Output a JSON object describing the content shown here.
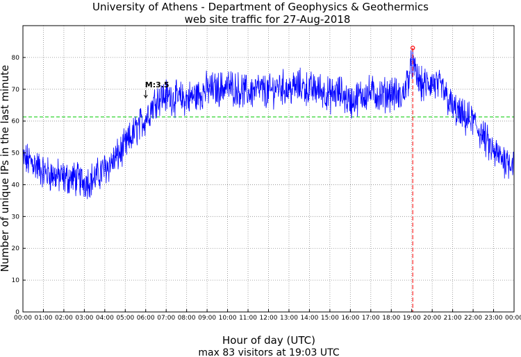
{
  "chart_data": {
    "type": "line",
    "title_line1": "University of Athens - Department of Geophysics & Geothermics",
    "title_line2": "web site traffic for 27-Aug-2018",
    "ylabel": "Number of unique IPs in the last minute",
    "xlabel": "Hour of day (UTC)",
    "subtitle": "max 83 visitors at 19:03 UTC",
    "xlim": [
      0,
      24
    ],
    "ylim": [
      0,
      90
    ],
    "x_tick_labels": [
      "00:00",
      "01:00",
      "02:00",
      "03:00",
      "04:00",
      "05:00",
      "06:00",
      "07:00",
      "08:00",
      "09:00",
      "10:00",
      "11:00",
      "12:00",
      "13:00",
      "14:00",
      "15:00",
      "16:00",
      "17:00",
      "18:00",
      "19:00",
      "20:00",
      "21:00",
      "22:00",
      "23:00",
      "00:00"
    ],
    "y_ticks": [
      0,
      10,
      20,
      30,
      40,
      50,
      60,
      70,
      80
    ],
    "grid": true,
    "mean_line": 61.3,
    "max_marker": {
      "hour": 19.05,
      "value": 83,
      "time_label": "19:03"
    },
    "event_annotation": {
      "label": "M:3.5",
      "hour": 6.0,
      "value": 68
    },
    "series": [
      {
        "hours": [
          0,
          0.5,
          1,
          1.5,
          2,
          2.5,
          3,
          3.5,
          4,
          4.5,
          5,
          5.5,
          6,
          6.5,
          7,
          7.5,
          8,
          8.5,
          9,
          9.5,
          10,
          10.5,
          11,
          11.5,
          12,
          12.5,
          13,
          13.5,
          14,
          14.5,
          15,
          15.5,
          16,
          16.5,
          17,
          17.5,
          18,
          18.5,
          19,
          19.5,
          20,
          20.5,
          21,
          21.5,
          22,
          22.5,
          23,
          23.5,
          24
        ],
        "values": [
          48,
          47,
          44,
          43,
          42,
          42,
          41,
          42,
          45,
          48,
          52,
          57,
          61,
          67,
          68,
          67,
          67,
          68,
          70,
          70,
          71,
          70,
          69,
          70,
          69,
          71,
          70,
          71,
          70,
          70,
          68,
          69,
          66,
          68,
          69,
          68,
          69,
          67,
          77,
          71,
          72,
          70,
          64,
          61,
          60,
          55,
          50,
          48,
          47
        ]
      }
    ],
    "colors": {
      "series": "#0000ff",
      "mean_line": "#00cc00",
      "max_marker": "#ff0000",
      "grid": "#888888"
    }
  }
}
